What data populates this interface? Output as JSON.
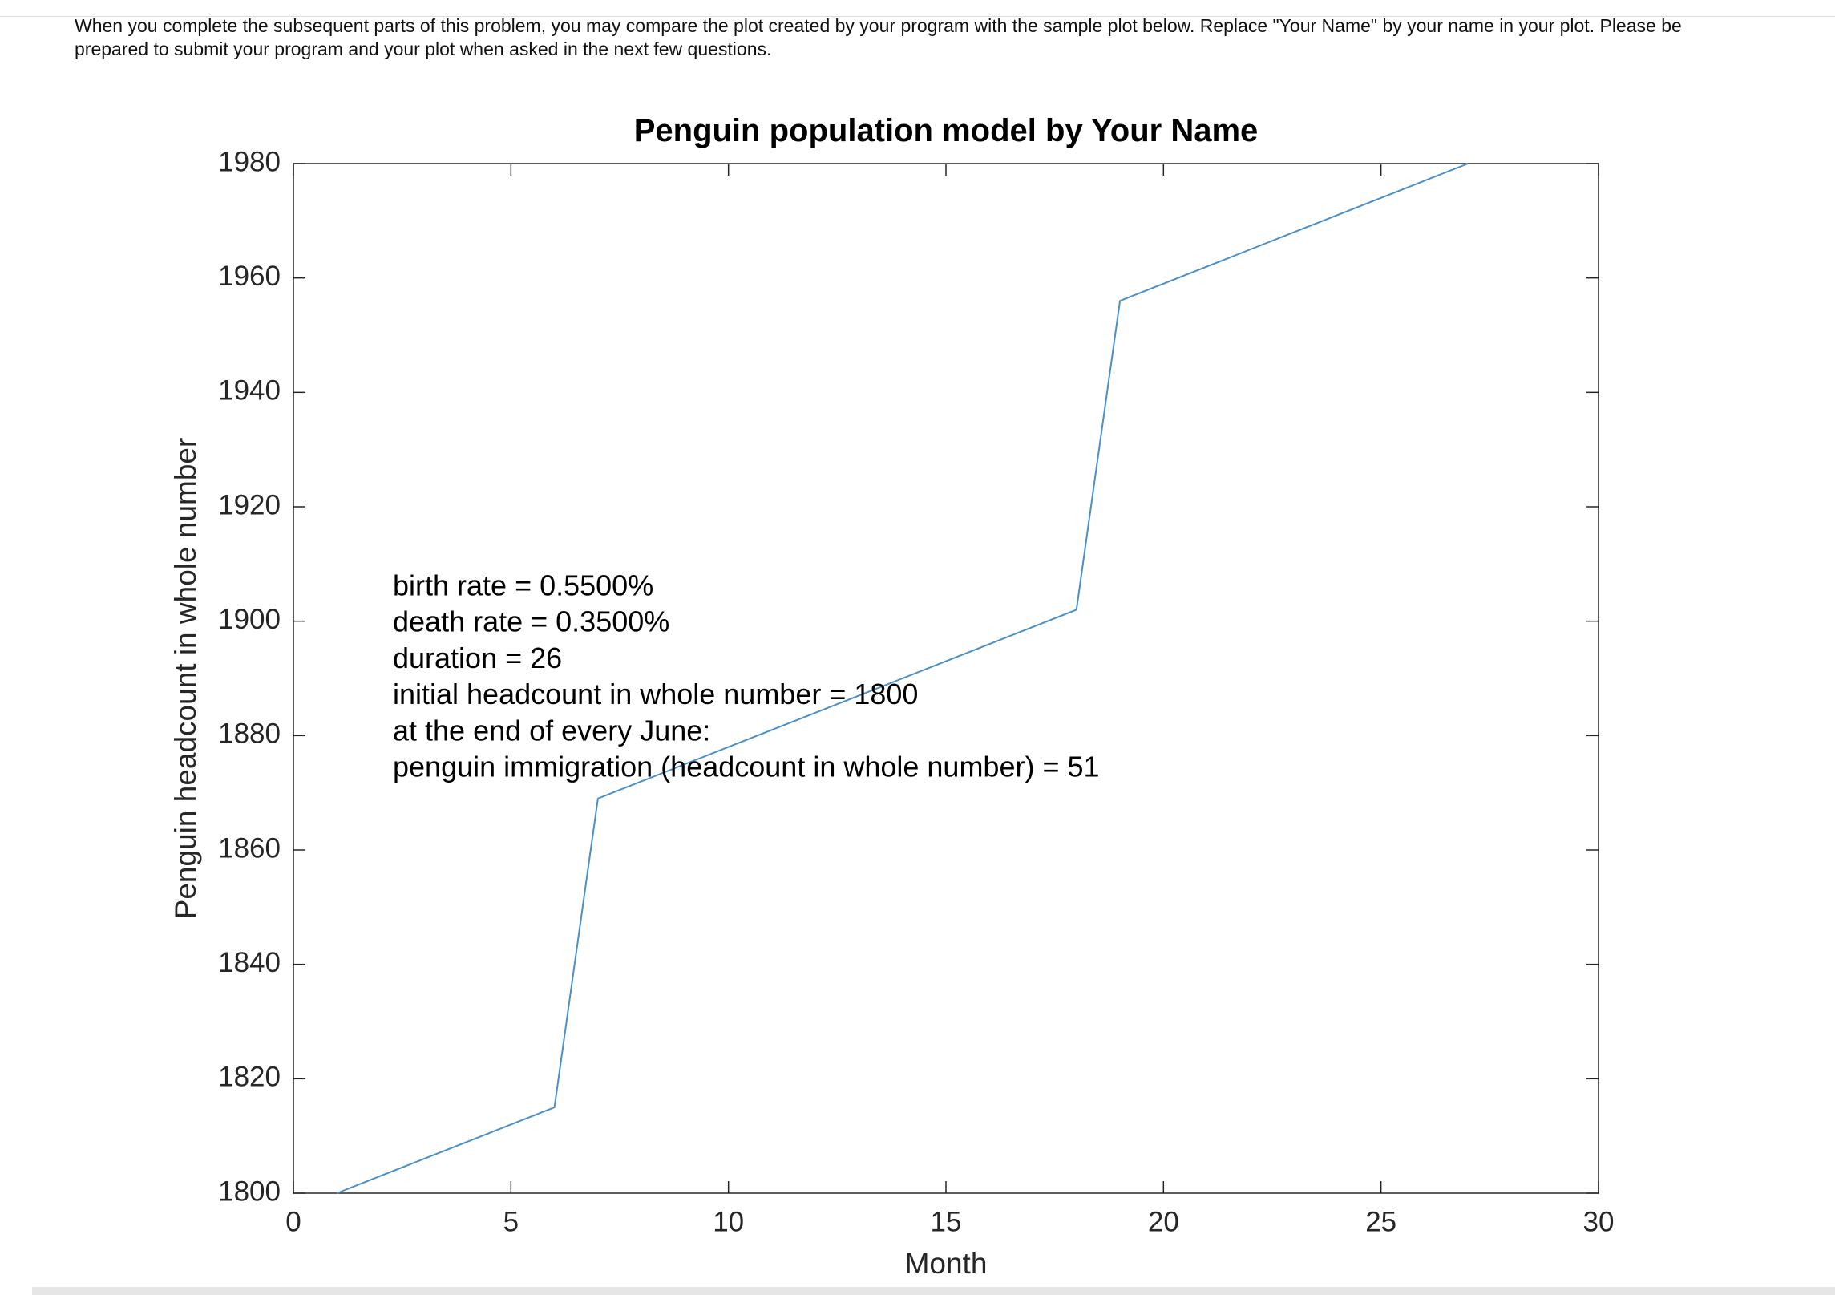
{
  "header": {
    "lines": [
      "When you complete the subsequent parts of this problem, you may compare the plot created by your program with the sample plot below. Replace \"Your Name\" by your name in your plot. Please be",
      "prepared to submit your program and your plot when asked in the next few questions."
    ]
  },
  "chart_data": {
    "type": "line",
    "title": "Penguin population model by Your Name",
    "x_label": "Month",
    "y_label": "Penguin headcount in whole number",
    "x": [
      1,
      2,
      3,
      4,
      5,
      6,
      7,
      8,
      9,
      10,
      11,
      12,
      13,
      14,
      15,
      16,
      17,
      18,
      19,
      20,
      21,
      22,
      23,
      24,
      25,
      26,
      27
    ],
    "values": [
      1800,
      1803,
      1806,
      1809,
      1812,
      1815,
      1869,
      1872,
      1875,
      1878,
      1881,
      1884,
      1887,
      1890,
      1893,
      1896,
      1899,
      1902,
      1956,
      1959,
      1962,
      1965,
      1968,
      1971,
      1974,
      1977,
      1980
    ],
    "color": "#4a90c8",
    "xlim": [
      0,
      30
    ],
    "xticks": [
      0,
      5,
      10,
      15,
      20,
      25,
      30
    ],
    "ylim": [
      1800,
      1980
    ],
    "yticks": [
      1800,
      1820,
      1840,
      1860,
      1880,
      1900,
      1920,
      1940,
      1960,
      1980
    ],
    "grid": false,
    "annotations": [
      "birth rate = 0.5500%",
      "death rate = 0.3500%",
      "duration = 26",
      "initial headcount in whole number = 1800",
      "at the end of every June:",
      "penguin immigration (headcount in whole number) = 51"
    ]
  }
}
